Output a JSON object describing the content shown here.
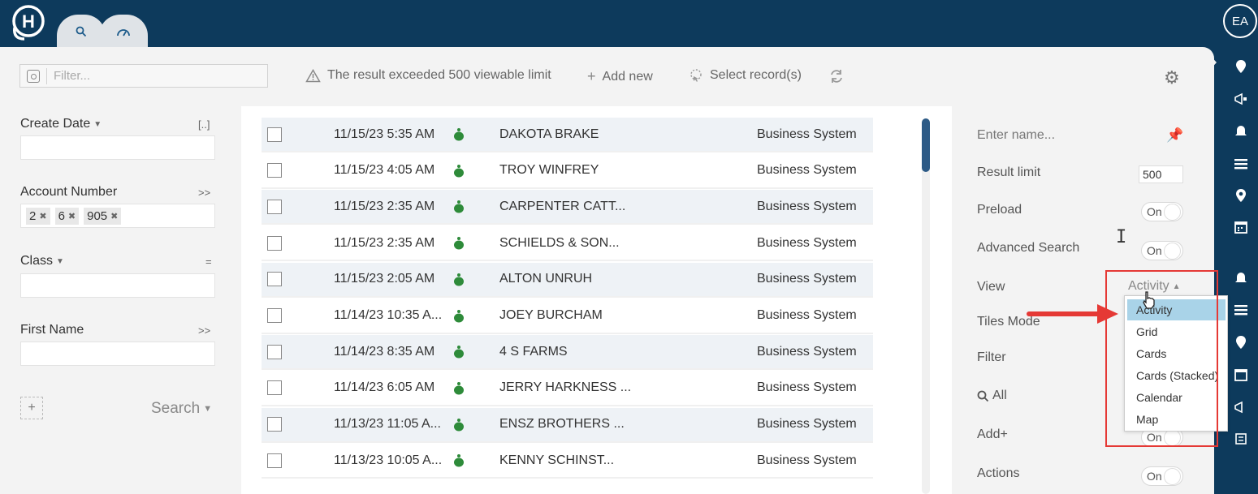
{
  "header": {
    "logo_letter": "H",
    "tabs": [
      {
        "icon": "search-icon"
      },
      {
        "icon": "dashboard-gauge-icon"
      }
    ]
  },
  "user": {
    "initials": "EA"
  },
  "toolbar": {
    "filter_placeholder": "Filter...",
    "limit_warning": "The result exceeded 500 viewable limit",
    "add_new": "Add new",
    "select_records": "Select record(s)"
  },
  "filters": {
    "create_date": {
      "label": "Create Date",
      "right": "[..]"
    },
    "account_number": {
      "label": "Account Number",
      "right": ">>",
      "chips": [
        "2",
        "6",
        "905"
      ]
    },
    "class": {
      "label": "Class",
      "right": "="
    },
    "first_name": {
      "label": "First Name",
      "right": ">>"
    },
    "add_label": "+",
    "search_label": "Search"
  },
  "results": {
    "rows": [
      {
        "date": "11/15/23 5:35 AM",
        "name": "DAKOTA BRAKE",
        "system": "Business System"
      },
      {
        "date": "11/15/23 4:05 AM",
        "name": "TROY WINFREY",
        "system": "Business System"
      },
      {
        "date": "11/15/23 2:35 AM",
        "name": "CARPENTER CATT...",
        "system": "Business System"
      },
      {
        "date": "11/15/23 2:35 AM",
        "name": "SCHIELDS & SON...",
        "system": "Business System"
      },
      {
        "date": "11/15/23 2:05 AM",
        "name": "ALTON UNRUH",
        "system": "Business System"
      },
      {
        "date": "11/14/23 10:35 A...",
        "name": "JOEY BURCHAM",
        "system": "Business System"
      },
      {
        "date": "11/14/23 8:35 AM",
        "name": "4 S FARMS",
        "system": "Business System"
      },
      {
        "date": "11/14/23 6:05 AM",
        "name": "JERRY HARKNESS ...",
        "system": "Business System"
      },
      {
        "date": "11/13/23 11:05 A...",
        "name": "ENSZ BROTHERS ...",
        "system": "Business System"
      },
      {
        "date": "11/13/23 10:05 A...",
        "name": "KENNY SCHINST...",
        "system": "Business System"
      }
    ]
  },
  "settings": {
    "name_placeholder": "Enter name...",
    "result_limit_label": "Result limit",
    "result_limit_value": "500",
    "preload_label": "Preload",
    "preload_state": "On",
    "advanced_search_label": "Advanced Search",
    "advanced_search_state": "On",
    "view_label": "View",
    "view_value": "Activity",
    "tiles_mode_label": "Tiles Mode",
    "filter_label": "Filter",
    "all_label": "All",
    "add_label": "Add+",
    "add_state": "On",
    "actions_label": "Actions",
    "actions_state": "On"
  },
  "view_dropdown": {
    "options": [
      "Activity",
      "Grid",
      "Cards",
      "Cards (Stacked)",
      "Calendar",
      "Map"
    ],
    "selected": "Activity"
  },
  "colors": {
    "navy": "#0d3a5c",
    "pin_green": "#2e8b3a",
    "selected_option": "#a9d3e8",
    "highlight_red": "#e53935"
  }
}
